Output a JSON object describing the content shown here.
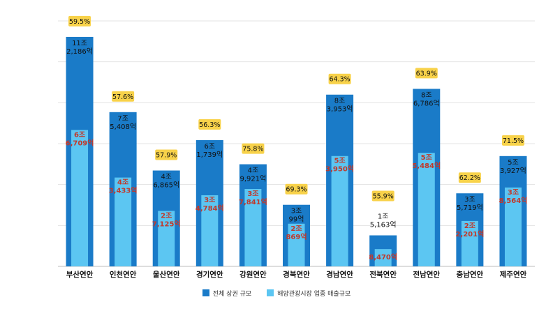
{
  "chart_data": {
    "type": "bar",
    "unit": "억",
    "categories": [
      "부산연안",
      "인천연안",
      "울산연안",
      "경기연안",
      "강원연안",
      "경북연안",
      "경남연안",
      "전북연안",
      "전남연안",
      "충남연안",
      "제주연안"
    ],
    "series": [
      {
        "name": "전체 상권 규모",
        "values": [
          112186,
          75408,
          46865,
          61739,
          49921,
          30099,
          83953,
          15163,
          86786,
          35719,
          53927
        ],
        "labels": [
          [
            "11조",
            "2,186억"
          ],
          [
            "7조",
            "5,408억"
          ],
          [
            "4조",
            "6,865억"
          ],
          [
            "6조",
            "1,739억"
          ],
          [
            "4조",
            "9,921억"
          ],
          [
            "3조",
            "99억"
          ],
          [
            "8조",
            "3,953억"
          ],
          [
            "1조",
            "5,163억"
          ],
          [
            "8조",
            "6,786억"
          ],
          [
            "3조",
            "5,719억"
          ],
          [
            "5조",
            "3,927억"
          ]
        ]
      },
      {
        "name": "해양관광시장 업종 매출규모",
        "values": [
          66709,
          43433,
          27125,
          34784,
          37841,
          20869,
          53950,
          8470,
          55484,
          22201,
          38564
        ],
        "labels": [
          [
            "6조",
            "6,709억"
          ],
          [
            "4조",
            "3,433억"
          ],
          [
            "2조",
            "7,125억"
          ],
          [
            "3조",
            "4,784억"
          ],
          [
            "3조",
            "7,841억"
          ],
          [
            "2조",
            "869억"
          ],
          [
            "5조",
            "3,950억"
          ],
          [
            "",
            "8,470억"
          ],
          [
            "5조",
            "5,484억"
          ],
          [
            "2조",
            "2,201억"
          ],
          [
            "3조",
            "8,564억"
          ]
        ]
      }
    ],
    "ratio_labels": [
      "59.5%",
      "57.6%",
      "57.9%",
      "56.3%",
      "75.8%",
      "69.3%",
      "64.3%",
      "55.9%",
      "63.9%",
      "62.2%",
      "71.5%"
    ],
    "ylim": [
      0,
      120000
    ],
    "grid": true,
    "legend_position": "bottom"
  },
  "colors": {
    "total": "#1a7bc8",
    "tourism": "#5cc6f2",
    "value_text": "#c0392b",
    "ratio_badge": "#f8d24a",
    "gridline": "#e3e3e3"
  },
  "legend": {
    "total": "전체 상권 규모",
    "tourism": "해양관광시장 업종 매출규모"
  }
}
